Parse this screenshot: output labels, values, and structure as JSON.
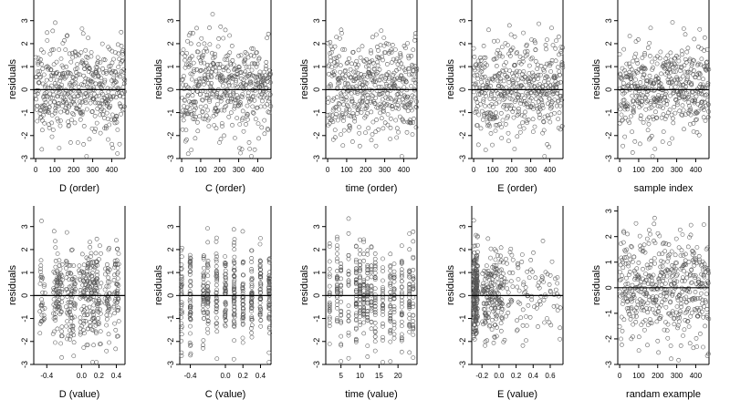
{
  "figure": {
    "ylabel": "residuals",
    "panels": [
      {
        "xlabel": "D (order)",
        "xticks": [
          0,
          100,
          200,
          300,
          400
        ],
        "xlim": [
          -10,
          470
        ],
        "yticks": [
          -3,
          -2,
          -1,
          0,
          1,
          2,
          3
        ],
        "ylim": [
          -3,
          3.9
        ],
        "mode": "order",
        "seed": 11
      },
      {
        "xlabel": "C (order)",
        "xticks": [
          0,
          100,
          200,
          300,
          400
        ],
        "xlim": [
          -10,
          470
        ],
        "yticks": [
          -3,
          -2,
          -1,
          0,
          1,
          2,
          3
        ],
        "ylim": [
          -3,
          3.9
        ],
        "mode": "order",
        "seed": 23
      },
      {
        "xlabel": "time (order)",
        "xticks": [
          0,
          100,
          200,
          300,
          400
        ],
        "xlim": [
          -10,
          470
        ],
        "yticks": [
          -3,
          -2,
          -1,
          0,
          1,
          2,
          3
        ],
        "ylim": [
          -3,
          3.9
        ],
        "mode": "order",
        "seed": 37
      },
      {
        "xlabel": "E (order)",
        "xticks": [
          0,
          100,
          200,
          300,
          400
        ],
        "xlim": [
          -10,
          470
        ],
        "yticks": [
          -3,
          -2,
          -1,
          0,
          1,
          2,
          3
        ],
        "ylim": [
          -3,
          3.9
        ],
        "mode": "order",
        "seed": 41
      },
      {
        "xlabel": "sample index",
        "xticks": [
          0,
          100,
          200,
          300,
          400
        ],
        "xlim": [
          -10,
          470
        ],
        "yticks": [
          -3,
          -2,
          -1,
          0,
          1,
          2,
          3
        ],
        "ylim": [
          -3,
          3.9
        ],
        "mode": "order",
        "seed": 53
      },
      {
        "xlabel": "D (value)",
        "xticks": [
          -0.4,
          0.0,
          0.2,
          0.4
        ],
        "xtick_labels": [
          "-0.4",
          "0.0",
          "0.2",
          "0.4"
        ],
        "xlim": [
          -0.55,
          0.5
        ],
        "yticks": [
          -3,
          -2,
          -1,
          0,
          1,
          2,
          3
        ],
        "ylim": [
          -3,
          3.9
        ],
        "mode": "Dvalue",
        "seed": 61
      },
      {
        "xlabel": "C (value)",
        "xticks": [
          -0.4,
          0.0,
          0.2,
          0.4
        ],
        "xtick_labels": [
          "-0.4",
          "0.0",
          "0.2",
          "0.4"
        ],
        "xlim": [
          -0.52,
          0.52
        ],
        "yticks": [
          -3,
          -2,
          -1,
          0,
          1,
          2,
          3
        ],
        "ylim": [
          -3,
          3.9
        ],
        "mode": "Cvalue",
        "seed": 71
      },
      {
        "xlabel": "time (value)",
        "xticks": [
          5,
          10,
          15,
          20
        ],
        "xtick_labels": [
          "5",
          "10",
          "15",
          "20"
        ],
        "xlim": [
          1,
          25
        ],
        "yticks": [
          -3,
          -2,
          -1,
          0,
          1,
          2,
          3
        ],
        "ylim": [
          -3,
          3.9
        ],
        "mode": "Tvalue",
        "seed": 83
      },
      {
        "xlabel": "E (value)",
        "xticks": [
          -0.2,
          0.0,
          0.2,
          0.4,
          0.6
        ],
        "xtick_labels": [
          "-0.2",
          "0.0",
          "0.2",
          "0.4",
          "0.6"
        ],
        "xlim": [
          -0.32,
          0.75
        ],
        "yticks": [
          -3,
          -2,
          -1,
          0,
          1,
          2,
          3
        ],
        "ylim": [
          -3,
          3.9
        ],
        "mode": "Evalue",
        "seed": 97
      },
      {
        "xlabel": "randam example",
        "xticks": [
          0,
          100,
          200,
          300,
          400
        ],
        "xlim": [
          -10,
          470
        ],
        "yticks": [
          -3,
          -2,
          -1,
          0,
          1,
          2,
          3
        ],
        "ylim": [
          -3,
          3.2
        ],
        "mode": "order",
        "seed": 101
      }
    ]
  },
  "chart_data": {
    "type": "scatter",
    "rows": 2,
    "cols": 5,
    "points_per_panel": 470,
    "reference_line_y": 0,
    "marker": "open-circle",
    "marker_color": "#555555",
    "line_color": "#000000"
  }
}
